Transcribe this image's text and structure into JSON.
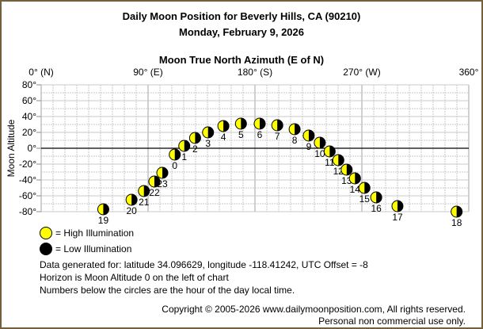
{
  "title": "Daily Moon Position for Beverly Hills, CA (90210)",
  "subtitle": "Monday, February 9, 2026",
  "chart_data": {
    "type": "scatter",
    "title": "Daily Moon Position for Beverly Hills, CA (90210)",
    "xlabel": "Moon True North Azimuth (E of N)",
    "ylabel": "Moon Altitude",
    "xlim": [
      0,
      360
    ],
    "ylim": [
      -80,
      80
    ],
    "x_ticks": [
      {
        "v": 0,
        "label": "0° (N)"
      },
      {
        "v": 90,
        "label": "90° (E)"
      },
      {
        "v": 180,
        "label": "180° (S)"
      },
      {
        "v": 270,
        "label": "270° (W)"
      },
      {
        "v": 360,
        "label": "360°"
      }
    ],
    "y_ticks": [
      {
        "v": 80,
        "label": "80°"
      },
      {
        "v": 60,
        "label": "60°"
      },
      {
        "v": 40,
        "label": "40°"
      },
      {
        "v": 20,
        "label": "20°"
      },
      {
        "v": 0,
        "label": "0°"
      },
      {
        "v": -20,
        "label": "-20°"
      },
      {
        "v": -40,
        "label": "-40°"
      },
      {
        "v": -60,
        "label": "-60°"
      },
      {
        "v": -80,
        "label": "-80°"
      }
    ],
    "grid": true,
    "points": [
      {
        "hour": "0",
        "azimuth": 112.5,
        "altitude": -8
      },
      {
        "hour": "1",
        "azimuth": 120.5,
        "altitude": 3
      },
      {
        "hour": "2",
        "azimuth": 129.6,
        "altitude": 13
      },
      {
        "hour": "3",
        "azimuth": 140.5,
        "altitude": 20
      },
      {
        "hour": "4",
        "azimuth": 153.4,
        "altitude": 28
      },
      {
        "hour": "5",
        "azimuth": 168.2,
        "altitude": 31
      },
      {
        "hour": "6",
        "azimuth": 184,
        "altitude": 31
      },
      {
        "hour": "7",
        "azimuth": 198.8,
        "altitude": 29
      },
      {
        "hour": "8",
        "azimuth": 213.4,
        "altitude": 24
      },
      {
        "hour": "9",
        "azimuth": 225.3,
        "altitude": 16
      },
      {
        "hour": "10",
        "azimuth": 234.6,
        "altitude": 7
      },
      {
        "hour": "11",
        "azimuth": 242.9,
        "altitude": -4
      },
      {
        "hour": "12",
        "azimuth": 250.2,
        "altitude": -15
      },
      {
        "hour": "13",
        "azimuth": 257.2,
        "altitude": -27
      },
      {
        "hour": "14",
        "azimuth": 264.2,
        "altitude": -38
      },
      {
        "hour": "15",
        "azimuth": 272.2,
        "altitude": -50
      },
      {
        "hour": "16",
        "azimuth": 282.1,
        "altitude": -62
      },
      {
        "hour": "17",
        "azimuth": 300,
        "altitude": -73
      },
      {
        "hour": "18",
        "azimuth": 349.8,
        "altitude": -80
      },
      {
        "hour": "19",
        "azimuth": 52.3,
        "altitude": -77
      },
      {
        "hour": "20",
        "azimuth": 76.1,
        "altitude": -65
      },
      {
        "hour": "21",
        "azimuth": 86.5,
        "altitude": -54
      },
      {
        "hour": "22",
        "azimuth": 95.3,
        "altitude": -42
      },
      {
        "hour": "23",
        "azimuth": 102,
        "altitude": -31
      }
    ],
    "colors": {
      "high": "#ffff00",
      "low": "#000000",
      "grid": "#c8c8c8"
    }
  },
  "legend": {
    "high": "= High Illumination",
    "low": "= Low Illumination"
  },
  "notes": [
    "Data generated for: latitude 34.096629, longitude -118.41242, UTC Offset = -8",
    "Horizon is Moon Altitude 0 on the left of chart",
    "Numbers below the circles are the hour of the day local time."
  ],
  "footer": {
    "copyright": "Copyright © 2005-2026 www.dailymoonposition.com, All rights reserved.",
    "personal": "Personal non commercial use only."
  }
}
